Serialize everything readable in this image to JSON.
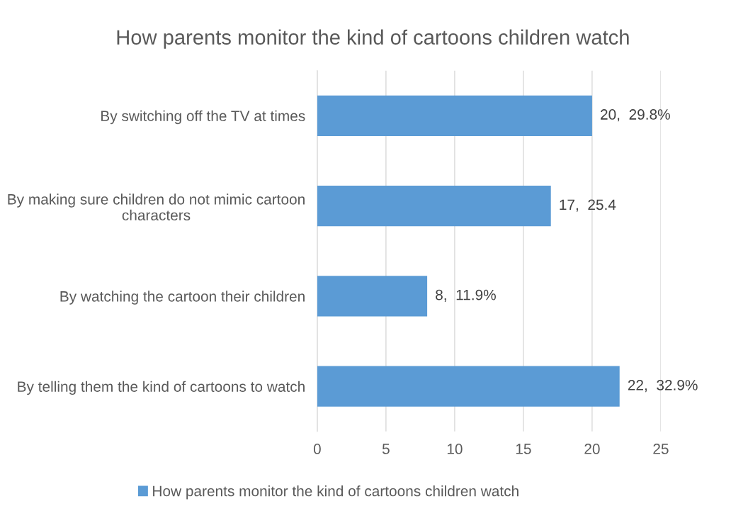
{
  "chart_data": {
    "type": "bar",
    "orientation": "horizontal",
    "title": "How parents monitor the kind of cartoons children watch",
    "categories": [
      "By switching off the TV at times",
      "By making sure children do not mimic cartoon\ncharacters",
      "By watching the cartoon their children",
      "By telling them the kind of cartoons to watch"
    ],
    "series": [
      {
        "name": "How parents monitor the kind of cartoons children watch",
        "color": "#5b9bd5",
        "values": [
          20,
          17,
          8,
          22
        ],
        "value_labels": [
          "20,  29.8%",
          "17,  25.4",
          "8,  11.9%",
          "22,  32.9%"
        ]
      }
    ],
    "xlim": [
      0,
      25
    ],
    "xticks": [
      0,
      5,
      10,
      15,
      20,
      25
    ],
    "grid": "x",
    "legend": "bottom"
  }
}
